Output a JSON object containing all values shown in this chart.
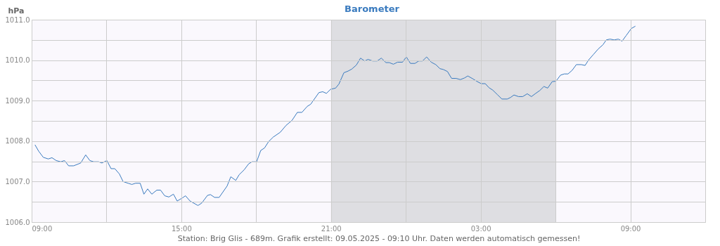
{
  "chart_data": {
    "type": "line",
    "title": "Barometer",
    "ylabel": "hPa",
    "x": [
      "2025-05-08T09:08",
      "2025-05-08T09:17",
      "2025-05-08T09:28",
      "2025-05-08T09:40",
      "2025-05-08T09:49",
      "2025-05-08T09:59",
      "2025-05-08T10:10",
      "2025-05-08T10:19",
      "2025-05-08T10:29",
      "2025-05-08T10:41",
      "2025-05-08T10:58",
      "2025-05-08T11:10",
      "2025-05-08T11:20",
      "2025-05-08T11:29",
      "2025-05-08T11:41",
      "2025-05-08T11:49",
      "2025-05-08T12:01",
      "2025-05-08T12:11",
      "2025-05-08T12:20",
      "2025-05-08T12:31",
      "2025-05-08T12:40",
      "2025-05-08T12:52",
      "2025-05-08T13:01",
      "2025-05-08T13:10",
      "2025-05-08T13:21",
      "2025-05-08T13:30",
      "2025-05-08T13:39",
      "2025-05-08T13:49",
      "2025-05-08T14:01",
      "2025-05-08T14:10",
      "2025-05-08T14:20",
      "2025-05-08T14:30",
      "2025-05-08T14:41",
      "2025-05-08T14:50",
      "2025-05-08T15:03",
      "2025-05-08T15:10",
      "2025-05-08T15:21",
      "2025-05-08T15:40",
      "2025-05-08T15:49",
      "2025-05-08T16:03",
      "2025-05-08T16:10",
      "2025-05-08T16:20",
      "2025-05-08T16:31",
      "2025-05-08T16:50",
      "2025-05-08T16:59",
      "2025-05-08T17:11",
      "2025-05-08T17:19",
      "2025-05-08T17:31",
      "2025-05-08T17:42",
      "2025-05-08T17:50",
      "2025-05-08T18:01",
      "2025-05-08T18:11",
      "2025-05-08T18:20",
      "2025-05-08T18:30",
      "2025-05-08T18:41",
      "2025-05-08T18:58",
      "2025-05-08T19:12",
      "2025-05-08T19:26",
      "2025-05-08T19:39",
      "2025-05-08T19:50",
      "2025-05-08T20:03",
      "2025-05-08T20:11",
      "2025-05-08T20:31",
      "2025-05-08T20:40",
      "2025-05-08T20:49",
      "2025-05-08T20:59",
      "2025-05-08T21:11",
      "2025-05-08T21:19",
      "2025-05-08T21:31",
      "2025-05-08T21:41",
      "2025-05-08T21:50",
      "2025-05-08T22:01",
      "2025-05-08T22:11",
      "2025-05-08T22:21",
      "2025-05-08T22:29",
      "2025-05-08T22:40",
      "2025-05-08T22:51",
      "2025-05-08T23:01",
      "2025-05-08T23:12",
      "2025-05-08T23:20",
      "2025-05-08T23:30",
      "2025-05-08T23:40",
      "2025-05-08T23:52",
      "2025-05-09T00:01",
      "2025-05-09T00:11",
      "2025-05-09T00:22",
      "2025-05-09T00:31",
      "2025-05-09T00:40",
      "2025-05-09T00:50",
      "2025-05-09T01:01",
      "2025-05-09T01:12",
      "2025-05-09T01:22",
      "2025-05-09T01:30",
      "2025-05-09T01:40",
      "2025-05-09T01:50",
      "2025-05-09T02:01",
      "2025-05-09T02:11",
      "2025-05-09T02:21",
      "2025-05-09T02:29",
      "2025-05-09T02:41",
      "2025-05-09T02:52",
      "2025-05-09T03:01",
      "2025-05-09T03:11",
      "2025-05-09T03:20",
      "2025-05-09T03:29",
      "2025-05-09T03:40",
      "2025-05-09T03:51",
      "2025-05-09T04:04",
      "2025-05-09T04:12",
      "2025-05-09T04:20",
      "2025-05-09T04:31",
      "2025-05-09T04:41",
      "2025-05-09T04:52",
      "2025-05-09T05:02",
      "2025-05-09T05:11",
      "2025-05-09T05:22",
      "2025-05-09T05:32",
      "2025-05-09T05:41",
      "2025-05-09T05:52",
      "2025-05-09T06:01",
      "2025-05-09T06:12",
      "2025-05-09T06:21",
      "2025-05-09T06:30",
      "2025-05-09T06:40",
      "2025-05-09T06:50",
      "2025-05-09T07:02",
      "2025-05-09T07:11",
      "2025-05-09T07:20",
      "2025-05-09T07:31",
      "2025-05-09T07:43",
      "2025-05-09T07:54",
      "2025-05-09T08:02",
      "2025-05-09T08:11",
      "2025-05-09T08:21",
      "2025-05-09T08:31",
      "2025-05-09T08:40",
      "2025-05-09T08:50",
      "2025-05-09T09:02",
      "2025-05-09T09:12"
    ],
    "series": [
      {
        "color": "#3a7bbf",
        "values": [
          1007.91,
          1007.75,
          1007.6,
          1007.56,
          1007.59,
          1007.52,
          1007.49,
          1007.52,
          1007.39,
          1007.39,
          1007.46,
          1007.66,
          1007.52,
          1007.49,
          1007.49,
          1007.46,
          1007.52,
          1007.32,
          1007.32,
          1007.19,
          1007.0,
          1006.96,
          1006.93,
          1006.96,
          1006.96,
          1006.69,
          1006.82,
          1006.69,
          1006.79,
          1006.79,
          1006.65,
          1006.62,
          1006.69,
          1006.52,
          1006.6,
          1006.65,
          1006.52,
          1006.41,
          1006.47,
          1006.66,
          1006.68,
          1006.61,
          1006.61,
          1006.89,
          1007.12,
          1007.03,
          1007.17,
          1007.29,
          1007.44,
          1007.49,
          1007.49,
          1007.77,
          1007.83,
          1007.99,
          1008.1,
          1008.22,
          1008.39,
          1008.51,
          1008.71,
          1008.71,
          1008.86,
          1008.91,
          1009.2,
          1009.22,
          1009.18,
          1009.28,
          1009.31,
          1009.41,
          1009.69,
          1009.73,
          1009.78,
          1009.88,
          1010.05,
          1009.98,
          1010.02,
          1009.98,
          1009.98,
          1010.05,
          1009.94,
          1009.94,
          1009.9,
          1009.95,
          1009.95,
          1010.08,
          1009.92,
          1009.92,
          1009.98,
          1009.98,
          1010.08,
          1009.95,
          1009.89,
          1009.79,
          1009.77,
          1009.72,
          1009.55,
          1009.55,
          1009.52,
          1009.56,
          1009.61,
          1009.54,
          1009.47,
          1009.42,
          1009.42,
          1009.32,
          1009.26,
          1009.15,
          1009.04,
          1009.04,
          1009.08,
          1009.14,
          1009.1,
          1009.1,
          1009.17,
          1009.1,
          1009.17,
          1009.25,
          1009.35,
          1009.31,
          1009.47,
          1009.48,
          1009.63,
          1009.66,
          1009.66,
          1009.75,
          1009.89,
          1009.89,
          1009.87,
          1010.01,
          1010.14,
          1010.28,
          1010.38,
          1010.5,
          1010.52,
          1010.5,
          1010.52,
          1010.47,
          1010.61,
          1010.78,
          1010.84
        ]
      }
    ],
    "xlim": [
      "2025-05-08T09:00",
      "2025-05-09T12:00"
    ],
    "xticks": [
      {
        "value": "2025-05-08T09:00",
        "label": "09:00"
      },
      {
        "value": "2025-05-08T12:00",
        "label": null
      },
      {
        "value": "2025-05-08T15:00",
        "label": "15:00"
      },
      {
        "value": "2025-05-08T18:00",
        "label": null
      },
      {
        "value": "2025-05-08T21:00",
        "label": "21:00"
      },
      {
        "value": "2025-05-09T00:00",
        "label": null
      },
      {
        "value": "2025-05-09T03:00",
        "label": "03:00"
      },
      {
        "value": "2025-05-09T06:00",
        "label": null
      },
      {
        "value": "2025-05-09T09:00",
        "label": "09:00"
      },
      {
        "value": "2025-05-09T12:00",
        "label": null
      }
    ],
    "ylim": [
      1006,
      1011
    ],
    "yticks": [
      {
        "value": 1006,
        "label": "1006.0"
      },
      {
        "value": 1006.5,
        "label": null
      },
      {
        "value": 1007,
        "label": "1007.0"
      },
      {
        "value": 1007.5,
        "label": null
      },
      {
        "value": 1008,
        "label": "1008.0"
      },
      {
        "value": 1008.5,
        "label": null
      },
      {
        "value": 1009,
        "label": "1009.0"
      },
      {
        "value": 1009.5,
        "label": null
      },
      {
        "value": 1010,
        "label": "1010.0"
      },
      {
        "value": 1010.5,
        "label": null
      },
      {
        "value": 1011,
        "label": "1011.0"
      }
    ],
    "bands": [
      {
        "axis": "x",
        "from": "2025-05-08T21:00",
        "to": "2025-05-09T06:00",
        "color": "#dedee2"
      }
    ],
    "grid": true,
    "annotations": [
      "Station: Brig Glis - 689m. Grafik erstellt: 09.05.2025 - 09:10 Uhr. Daten werden automatisch gemessen!"
    ]
  }
}
